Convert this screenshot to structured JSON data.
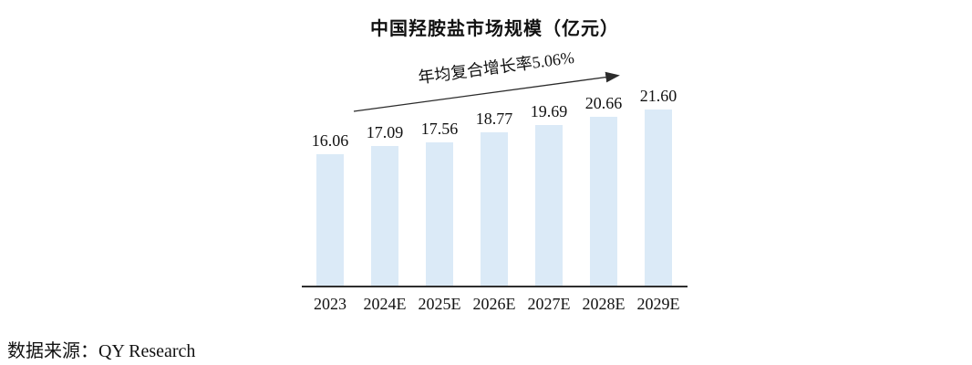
{
  "page": {
    "source_label": "数据来源：QY Research"
  },
  "chart_data": {
    "type": "bar",
    "title": "中国羟胺盐市场规模（亿元）",
    "categories": [
      "2023",
      "2024E",
      "2025E",
      "2026E",
      "2027E",
      "2028E",
      "2029E"
    ],
    "values": [
      16.06,
      17.09,
      17.56,
      18.77,
      19.69,
      20.66,
      21.6
    ],
    "value_labels": [
      "16.06",
      "17.09",
      "17.56",
      "18.77",
      "19.69",
      "20.66",
      "21.60"
    ],
    "annotation": "年均复合增长率5.06%",
    "xlabel": "",
    "ylabel": "",
    "ylim": [
      0,
      26
    ],
    "grid": false,
    "legend": "none",
    "bar_color": "#dbeaf7",
    "axis_color": "#2e2e2e",
    "text_color": "#111111",
    "arrow_color": "#2b2b2b"
  }
}
